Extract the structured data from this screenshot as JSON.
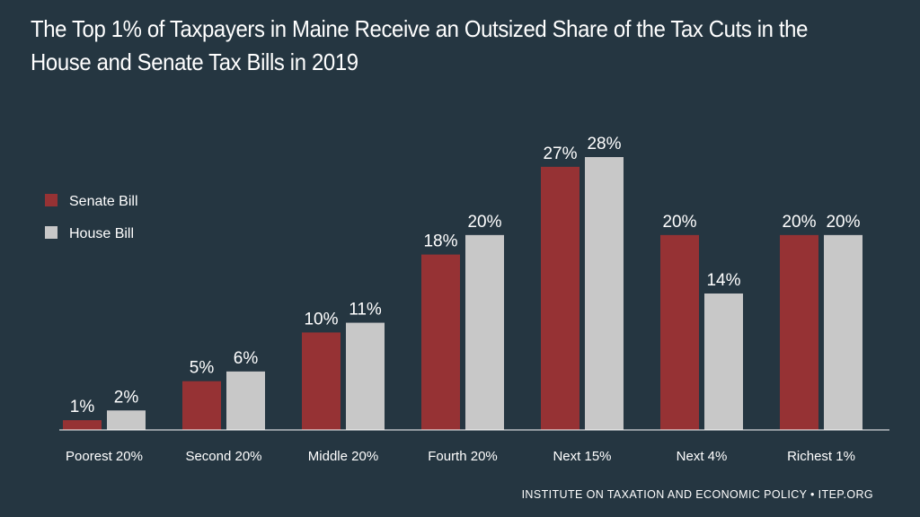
{
  "title": "The Top 1% of Taxpayers in Maine Receive an Outsized Share of the Tax Cuts in the House and Senate Tax Bills in 2019",
  "footer": "INSTITUTE ON TAXATION AND ECONOMIC POLICY • ITEP.ORG",
  "colors": {
    "background": "#253641",
    "senate": "#963234",
    "house": "#c8c8c8",
    "text": "#ffffff"
  },
  "chart_data": {
    "type": "bar",
    "title": "The Top 1% of Taxpayers in Maine Receive an Outsized Share of the Tax Cuts in the House and Senate Tax Bills in 2019",
    "categories": [
      "Poorest 20%",
      "Second 20%",
      "Middle 20%",
      "Fourth 20%",
      "Next 15%",
      "Next 4%",
      "Richest 1%"
    ],
    "series": [
      {
        "name": "Senate Bill",
        "values": [
          1,
          5,
          10,
          18,
          27,
          20,
          20
        ],
        "labels": [
          "1%",
          "5%",
          "10%",
          "18%",
          "27%",
          "20%",
          "20%"
        ],
        "color": "#963234"
      },
      {
        "name": "House Bill",
        "values": [
          2,
          6,
          11,
          20,
          28,
          14,
          20
        ],
        "labels": [
          "2%",
          "6%",
          "11%",
          "20%",
          "28%",
          "14%",
          "20%"
        ],
        "color": "#c8c8c8"
      }
    ],
    "ylim": [
      0,
      28
    ],
    "grid": false,
    "legend": "top-left"
  }
}
